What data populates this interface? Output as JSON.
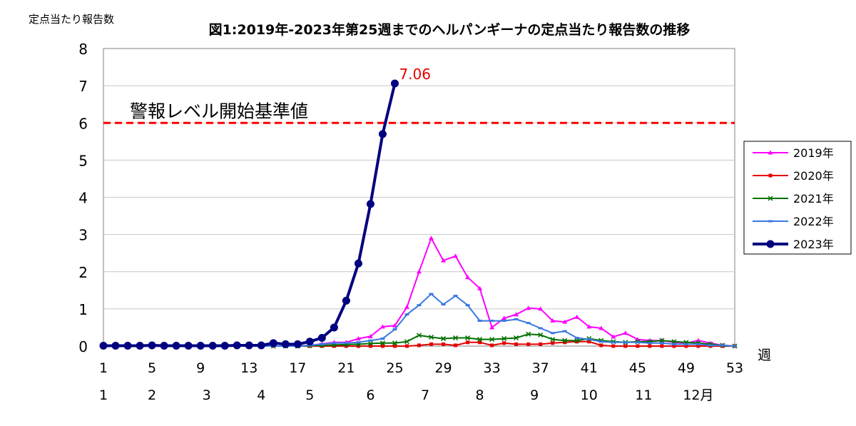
{
  "chart_data": {
    "type": "line",
    "title": "図1:2019年-2023年第25週までのヘルパンギーナの定点当たり報告数の推移",
    "ylabel": "定点当たり報告数",
    "xlabel": "週",
    "ylim": [
      0,
      8
    ],
    "yticks": [
      "0",
      "1",
      "2",
      "3",
      "4",
      "5",
      "6",
      "7",
      "8"
    ],
    "xlim": [
      1,
      53
    ],
    "week_ticks": [
      {
        "week": 1,
        "label": "1"
      },
      {
        "week": 5,
        "label": "5"
      },
      {
        "week": 9,
        "label": "9"
      },
      {
        "week": 13,
        "label": "13"
      },
      {
        "week": 17,
        "label": "17"
      },
      {
        "week": 21,
        "label": "21"
      },
      {
        "week": 25,
        "label": "25"
      },
      {
        "week": 29,
        "label": "29"
      },
      {
        "week": 33,
        "label": "33"
      },
      {
        "week": 37,
        "label": "37"
      },
      {
        "week": 41,
        "label": "41"
      },
      {
        "week": 45,
        "label": "45"
      },
      {
        "week": 49,
        "label": "49"
      },
      {
        "week": 53,
        "label": "53"
      }
    ],
    "month_ticks": [
      {
        "week": 1,
        "label": "1"
      },
      {
        "week": 5,
        "label": "2"
      },
      {
        "week": 9.5,
        "label": "3"
      },
      {
        "week": 14,
        "label": "4"
      },
      {
        "week": 18,
        "label": "5"
      },
      {
        "week": 23,
        "label": "6"
      },
      {
        "week": 27.5,
        "label": "7"
      },
      {
        "week": 32,
        "label": "8"
      },
      {
        "week": 36.5,
        "label": "9"
      },
      {
        "week": 41,
        "label": "10"
      },
      {
        "week": 45.5,
        "label": "11"
      },
      {
        "week": 50,
        "label": "12月"
      }
    ],
    "grid": true,
    "legend_position": "right",
    "threshold": {
      "value": 6,
      "label": "警報レベル開始基準値",
      "color": "#ff0000"
    },
    "annotation": {
      "week": 25,
      "value": 7.06,
      "text": "7.06",
      "color": "#e60000"
    },
    "series": [
      {
        "name": "2019年",
        "color": "#ff00ff",
        "marker": "triangle",
        "width": 2,
        "values": [
          0,
          0,
          0,
          0,
          0,
          0,
          0,
          0,
          0,
          0,
          0,
          0,
          0,
          0,
          0,
          0,
          0,
          0.02,
          0.06,
          0.1,
          0.1,
          0.2,
          0.26,
          0.52,
          0.55,
          1.05,
          2.0,
          2.9,
          2.3,
          2.42,
          1.85,
          1.55,
          0.5,
          0.75,
          0.85,
          1.02,
          1.0,
          0.68,
          0.65,
          0.78,
          0.52,
          0.48,
          0.25,
          0.35,
          0.18,
          0.15,
          0.15,
          0.1,
          0.08,
          0.15,
          0.08,
          0.02,
          0
        ]
      },
      {
        "name": "2020年",
        "color": "#e60000",
        "marker": "square",
        "width": 2,
        "values": [
          0,
          0,
          0,
          0,
          0,
          0,
          0,
          0,
          0,
          0,
          0,
          0,
          0,
          0,
          0,
          0,
          0,
          0,
          0,
          0,
          0,
          0,
          0,
          0,
          0,
          0,
          0.02,
          0.05,
          0.05,
          0.02,
          0.1,
          0.1,
          0.02,
          0.08,
          0.05,
          0.05,
          0.05,
          0.08,
          0.1,
          0.12,
          0.12,
          0.02,
          0,
          0,
          0,
          0,
          0,
          0,
          0,
          0,
          0,
          0,
          0
        ]
      },
      {
        "name": "2021年",
        "color": "#007000",
        "marker": "x",
        "width": 2,
        "values": [
          0,
          0,
          0,
          0,
          0,
          0,
          0,
          0,
          0,
          0,
          0,
          0,
          0,
          0,
          0,
          0,
          0,
          0.01,
          0.02,
          0.03,
          0.04,
          0.05,
          0.07,
          0.08,
          0.08,
          0.12,
          0.29,
          0.24,
          0.2,
          0.22,
          0.22,
          0.18,
          0.18,
          0.2,
          0.22,
          0.32,
          0.3,
          0.18,
          0.15,
          0.15,
          0.2,
          0.15,
          0.12,
          0.1,
          0.12,
          0.12,
          0.15,
          0.12,
          0.1,
          0.08,
          0.05,
          0.02,
          0
        ]
      },
      {
        "name": "2022年",
        "color": "#3a78e0",
        "marker": "dash",
        "width": 2,
        "values": [
          0,
          0,
          0,
          0,
          0,
          0,
          0,
          0,
          0,
          0,
          0,
          0,
          0,
          0,
          0,
          0,
          0,
          0.02,
          0.05,
          0.08,
          0.08,
          0.1,
          0.15,
          0.2,
          0.45,
          0.85,
          1.1,
          1.4,
          1.12,
          1.35,
          1.1,
          0.68,
          0.68,
          0.68,
          0.72,
          0.62,
          0.48,
          0.35,
          0.4,
          0.22,
          0.18,
          0.12,
          0.1,
          0.1,
          0.1,
          0.08,
          0.08,
          0.05,
          0.05,
          0.05,
          0.02,
          0.02,
          0
        ]
      },
      {
        "name": "2023年",
        "color": "#000080",
        "marker": "circle",
        "width": 4,
        "values": [
          0.01,
          0.01,
          0.01,
          0.01,
          0.02,
          0.01,
          0.01,
          0.01,
          0.01,
          0.01,
          0.01,
          0.02,
          0.02,
          0.02,
          0.08,
          0.05,
          0.05,
          0.12,
          0.22,
          0.5,
          1.22,
          2.22,
          3.82,
          5.7,
          7.06
        ]
      }
    ]
  }
}
